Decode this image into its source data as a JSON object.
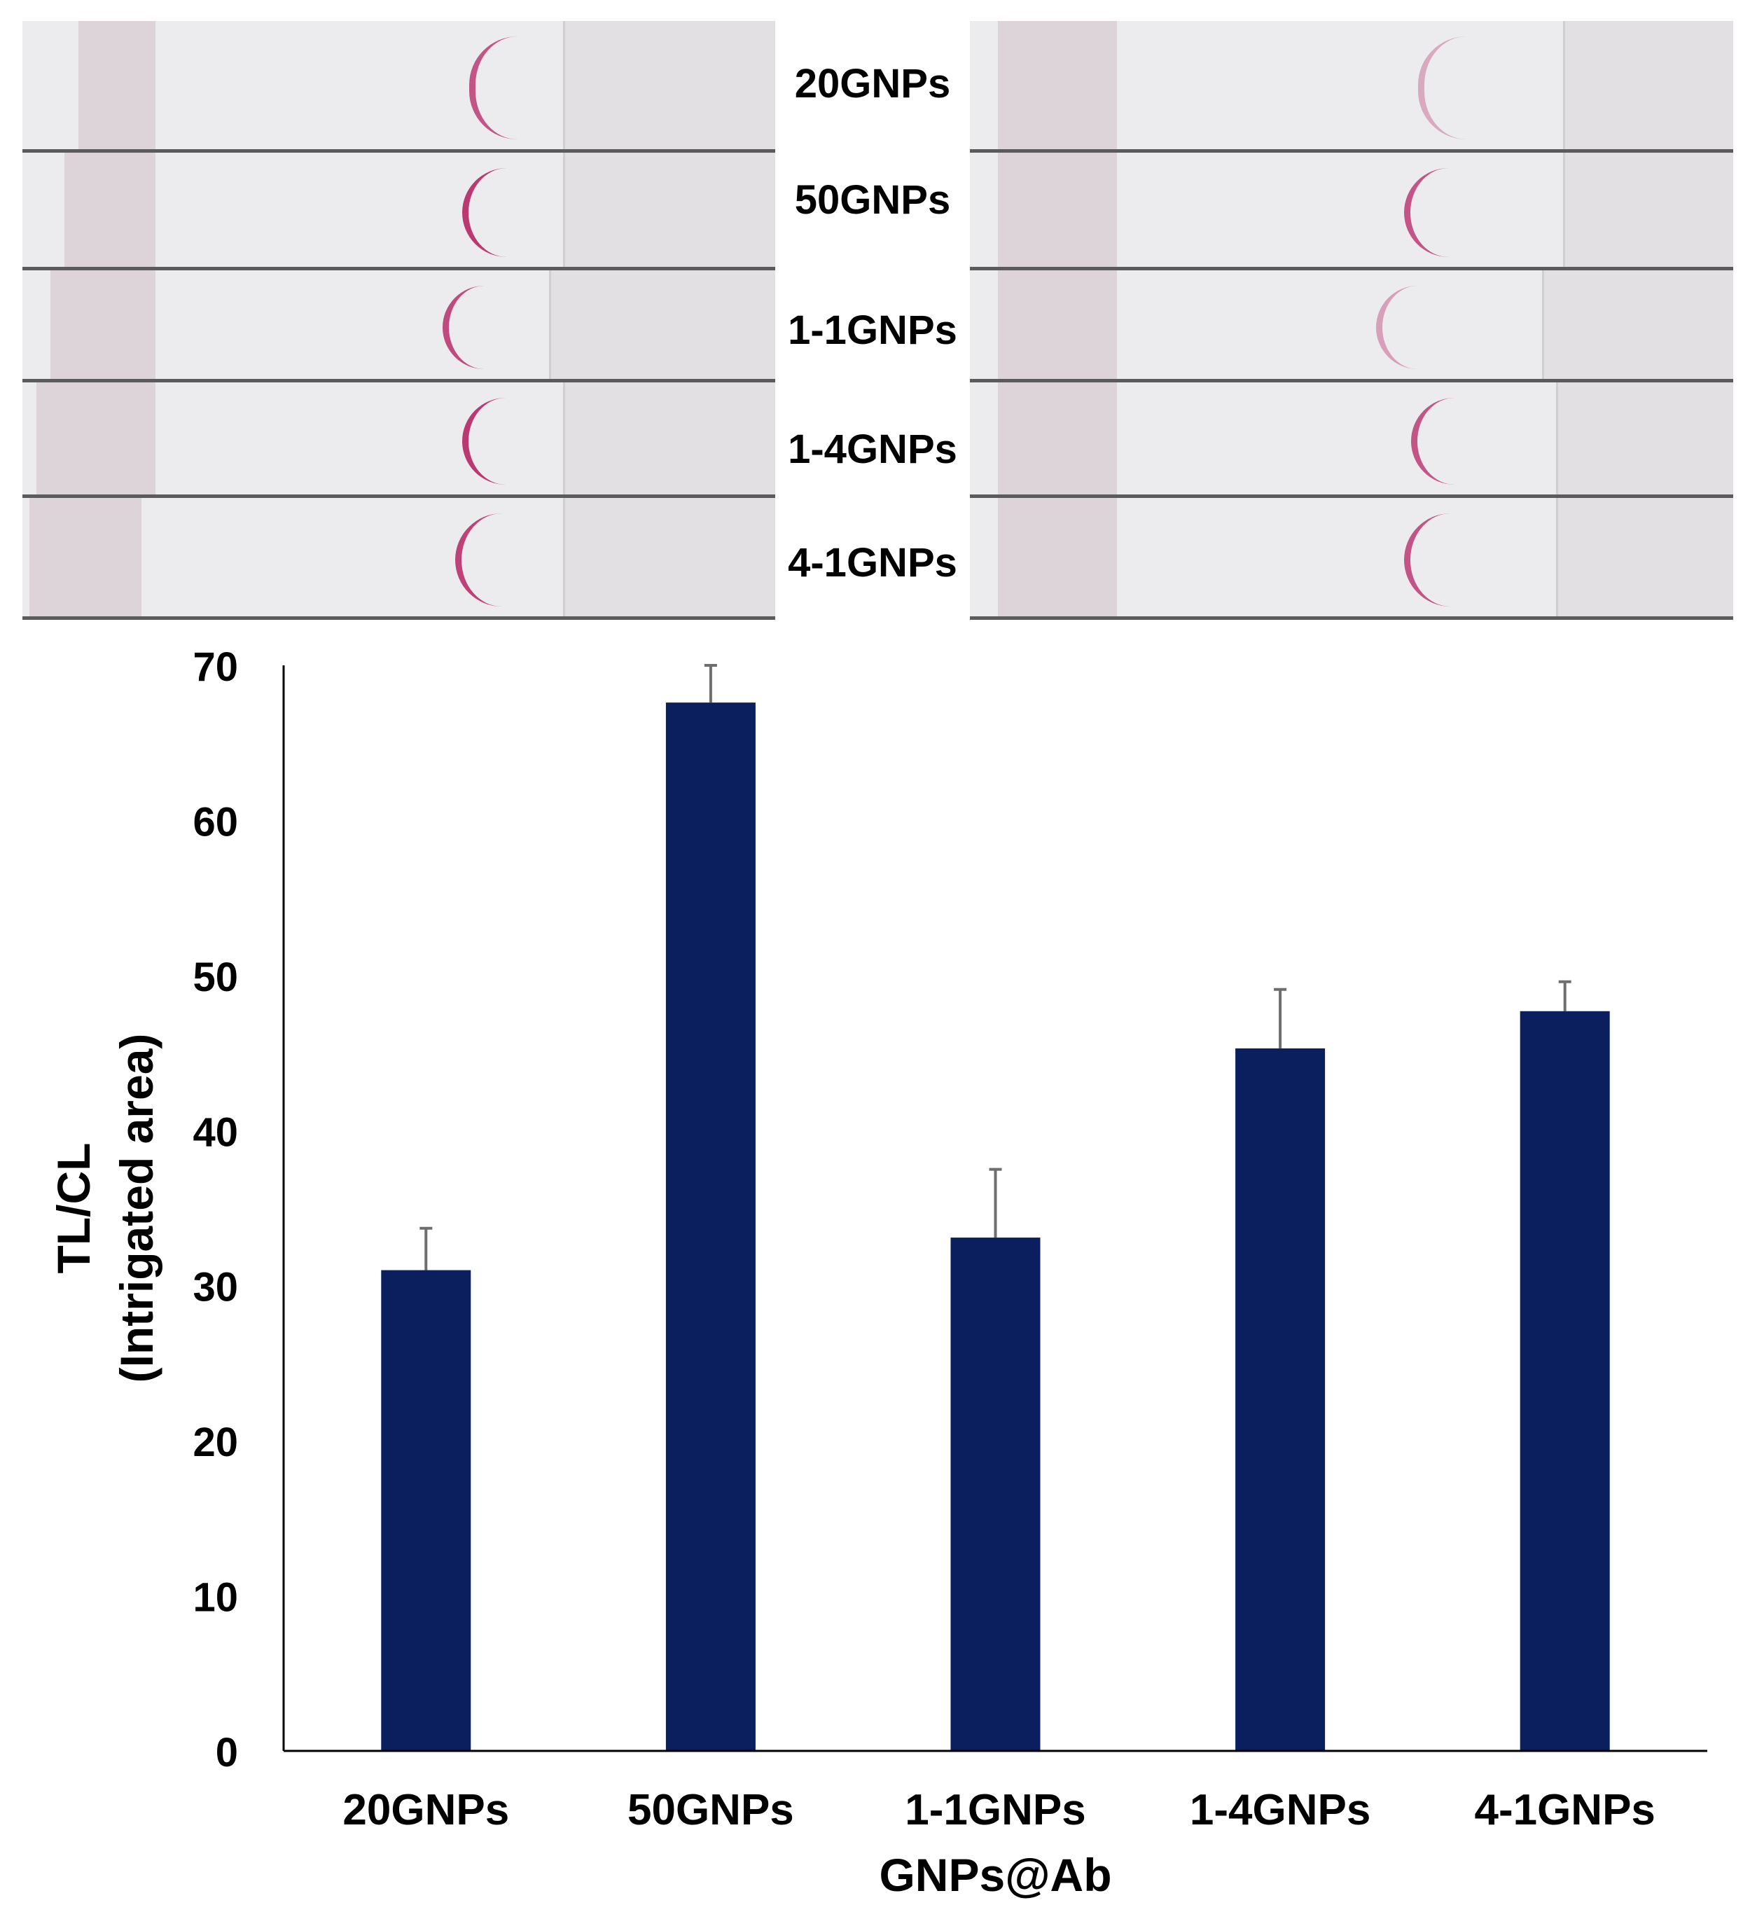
{
  "strip_labels": [
    "20GNPs",
    "50GNPs",
    "1-1GNPs",
    "1-4GNPs",
    "4-1GNPs"
  ],
  "colors": {
    "bar": "#0b1f5e",
    "error_bar": "#6e6e6e",
    "test_line": "#b8306b",
    "strip_membrane": "#ecebee",
    "strip_pad": "#e2e0e3"
  },
  "chart_data": {
    "type": "bar",
    "categories": [
      "20GNPs",
      "50GNPs",
      "1-1GNPs",
      "1-4GNPs",
      "4-1GNPs"
    ],
    "values": [
      31,
      67.6,
      33.1,
      45.3,
      47.7
    ],
    "errors": [
      2.7,
      2.6,
      4.4,
      3.8,
      1.9
    ],
    "xlabel": "GNPs@Ab",
    "ylabel": [
      "TL/CL",
      "(Intrigated area)"
    ],
    "ylim": [
      0,
      70
    ],
    "yticks": [
      0,
      10,
      20,
      30,
      40,
      50,
      60,
      70
    ],
    "grid": false,
    "legend": "none"
  }
}
